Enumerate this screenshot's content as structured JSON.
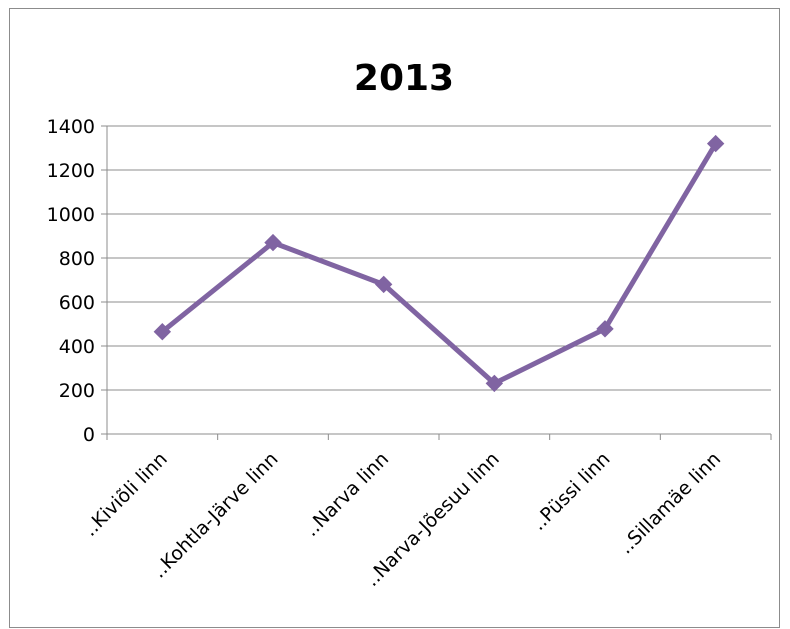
{
  "chart_data": {
    "type": "line",
    "title": "2013",
    "xlabel": "",
    "ylabel": "",
    "categories": [
      "..Kiviõli linn",
      "..Kohtla-Järve linn",
      "..Narva linn",
      "..Narva-Jõesuu linn",
      "..Püssi linn",
      "..Sillamäe linn"
    ],
    "series": [
      {
        "values": [
          465,
          870,
          680,
          230,
          478,
          1320
        ],
        "color": "#8064a2",
        "marker": "diamond"
      }
    ],
    "ylim": [
      0,
      1400
    ],
    "yticks": [
      0,
      200,
      400,
      600,
      800,
      1000,
      1200,
      1400
    ],
    "grid": "horizontal",
    "legend": "none"
  }
}
